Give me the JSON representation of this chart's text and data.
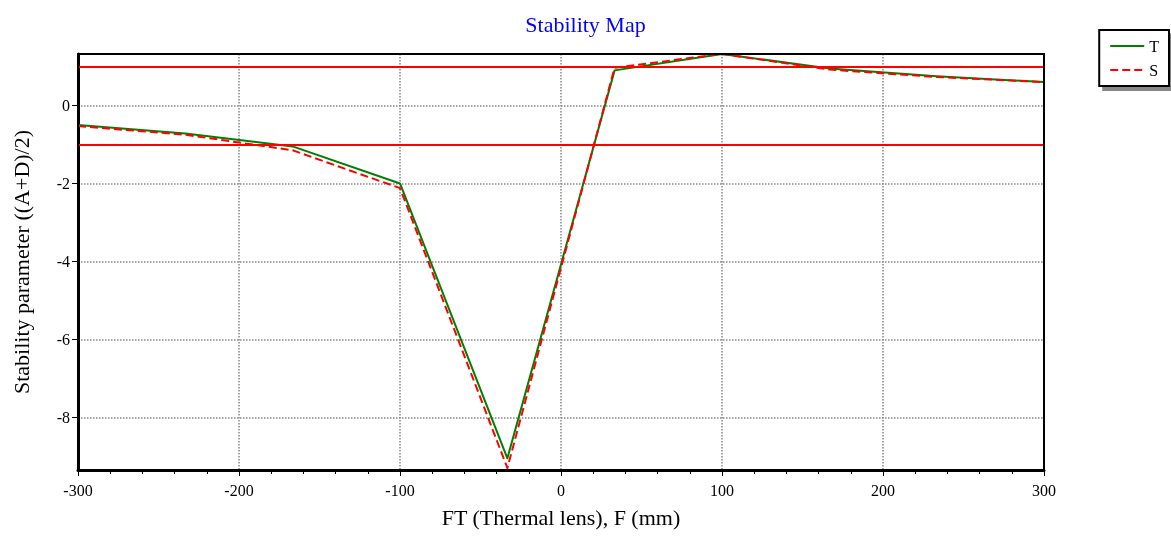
{
  "chart_data": {
    "type": "line",
    "title": "Stability Map",
    "xlabel": "FT (Thermal lens), F (mm)",
    "ylabel": "Stability parameter ((A+D)/2)",
    "x": [
      -300,
      -233.3,
      -166.7,
      -100,
      -33.3,
      33.3,
      100,
      166.7,
      233.3,
      300
    ],
    "series": [
      {
        "name": "T",
        "color": "#008000",
        "line_style": "solid",
        "values": [
          -0.5,
          -0.72,
          -1.05,
          -2.0,
          -9.05,
          0.9,
          1.32,
          0.95,
          0.75,
          0.6
        ]
      },
      {
        "name": "S",
        "color": "#ff0000",
        "line_style": "dashed",
        "values": [
          -0.53,
          -0.75,
          -1.15,
          -2.12,
          -9.3,
          0.97,
          1.32,
          0.92,
          0.73,
          0.6
        ]
      }
    ],
    "xlim": [
      -300,
      300
    ],
    "xticks": [
      -300,
      -200,
      -100,
      0,
      100,
      200,
      300
    ],
    "ylim": [
      -9.35,
      1.32
    ],
    "yticks": [
      -8,
      -6,
      -4,
      -2,
      0
    ],
    "ref_lines": [
      {
        "axis": "y",
        "value": 1,
        "color": "#ff0000",
        "line_style": "solid"
      },
      {
        "axis": "y",
        "value": -1,
        "color": "#ff0000",
        "line_style": "solid"
      }
    ],
    "grid": true,
    "legend": "top right",
    "marker": "none"
  }
}
